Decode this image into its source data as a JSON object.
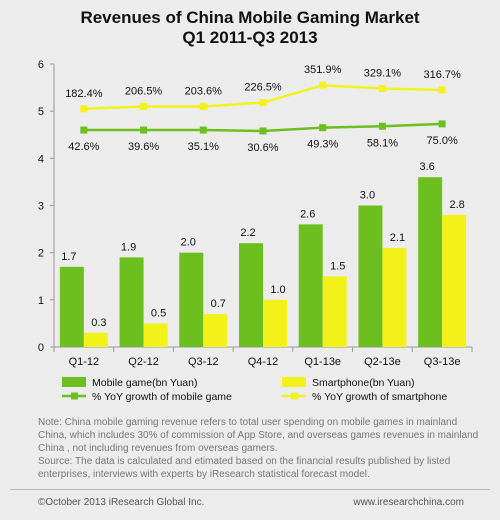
{
  "chart_data": {
    "type": "bar",
    "title": "Revenues of China Mobile Gaming Market",
    "subtitle": "Q1 2011-Q3 2013",
    "categories": [
      "Q1-12",
      "Q2-12",
      "Q3-12",
      "Q4-12",
      "Q1-13e",
      "Q2-13e",
      "Q3-13e"
    ],
    "ylim": [
      0,
      6
    ],
    "yticks": [
      0,
      1,
      2,
      3,
      4,
      5,
      6
    ],
    "grid": false,
    "legend_position": "bottom",
    "series": [
      {
        "name": "Mobile game(bn Yuan)",
        "type": "bar",
        "color": "#6cbf1e",
        "values": [
          1.7,
          1.9,
          2.0,
          2.2,
          2.6,
          3.0,
          3.6
        ],
        "labels": [
          "1.7",
          "1.9",
          "2.0",
          "2.2",
          "2.6",
          "3.0",
          "3.6"
        ]
      },
      {
        "name": "Smartphone(bn Yuan)",
        "type": "bar",
        "color": "#f2f21a",
        "values": [
          0.3,
          0.5,
          0.7,
          1.0,
          1.5,
          2.1,
          2.8
        ],
        "labels": [
          "0.3",
          "0.5",
          "0.7",
          "1.0",
          "1.5",
          "2.1",
          "2.8"
        ]
      },
      {
        "name": "% YoY growth of mobile game",
        "type": "line",
        "color": "#6cbf1e",
        "plot_values": [
          4.6,
          4.6,
          4.6,
          4.58,
          4.65,
          4.68,
          4.73
        ],
        "labels": [
          "42.6%",
          "39.6%",
          "35.1%",
          "30.6%",
          "49.3%",
          "58.1%",
          "75.0%"
        ]
      },
      {
        "name": "% YoY growth of smartphone",
        "type": "line",
        "color": "#f2f21a",
        "plot_values": [
          5.05,
          5.1,
          5.1,
          5.18,
          5.55,
          5.48,
          5.45
        ],
        "labels": [
          "182.4%",
          "206.5%",
          "203.6%",
          "226.5%",
          "351.9%",
          "329.1%",
          "316.7%"
        ]
      }
    ]
  },
  "note": {
    "text1": "Note: China mobile gaming revenue refers to total user spending on mobile games in mainland China,  which  includes 30% of commission of App Store, and  overseas games revenues in mainland China  , not including revenues from overseas gamers.",
    "text2": "Source: The data is calculated and etimated  based on the financial results published by listed enterprises, interviews  with experts by iResearch statistical forecast model."
  },
  "footer": {
    "copyright": "©October 2013 iResearch Global Inc.",
    "website": "www.iresearchchina.com"
  }
}
